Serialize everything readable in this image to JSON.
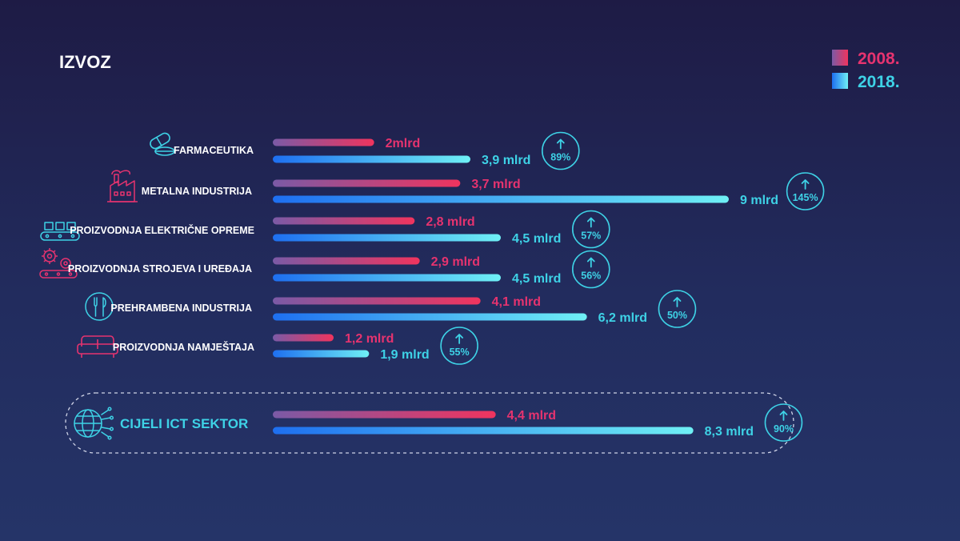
{
  "colors": {
    "accent_2008": "#e6336f",
    "accent_2018": "#3ed2e6",
    "text": "#ffffff"
  },
  "chart_data": {
    "type": "bar",
    "title": "IZVOZ",
    "unit": "mlrd",
    "legend": [
      {
        "name": "2008.",
        "color": "#e6336f"
      },
      {
        "name": "2018.",
        "color": "#3ed2e6"
      }
    ],
    "categories": [
      {
        "name": "FARMACEUTIKA",
        "icon": "pills-icon",
        "v2008": 2,
        "v2018": 3.9,
        "label2008": "2mlrd",
        "label2018": "3,9 mlrd",
        "growth": "89%"
      },
      {
        "name": "METALNA INDUSTRIJA",
        "icon": "factory-icon",
        "v2008": 3.7,
        "v2018": 9,
        "label2008": "3,7 mlrd",
        "label2018": "9 mlrd",
        "growth": "145%"
      },
      {
        "name": "PROIZVODNJA ELEKTRIČNE OPREME",
        "icon": "conveyor-icon",
        "v2008": 2.8,
        "v2018": 4.5,
        "label2008": "2,8 mlrd",
        "label2018": "4,5 mlrd",
        "growth": "57%"
      },
      {
        "name": "PROIZVODNJA STROJEVA I UREĐAJA",
        "icon": "gears-icon",
        "v2008": 2.9,
        "v2018": 4.5,
        "label2008": "2,9 mlrd",
        "label2018": "4,5 mlrd",
        "growth": "56%"
      },
      {
        "name": "PREHRAMBENA INDUSTRIJA",
        "icon": "cutlery-icon",
        "v2008": 4.1,
        "v2018": 6.2,
        "label2008": "4,1 mlrd",
        "label2018": "6,2 mlrd",
        "growth": "50%"
      },
      {
        "name": "PROIZVODNJA NAMJEŠTAJA",
        "icon": "sofa-icon",
        "v2008": 1.2,
        "v2018": 1.9,
        "label2008": "1,2 mlrd",
        "label2018": "1,9 mlrd",
        "growth": "55%"
      }
    ],
    "total": {
      "name": "CIJELI ICT SEKTOR",
      "icon": "globe-network-icon",
      "v2008": 4.4,
      "v2018": 8.3,
      "label2008": "4,4 mlrd",
      "label2018": "8,3 mlrd",
      "growth": "90%"
    },
    "xlim": [
      0,
      9
    ]
  }
}
